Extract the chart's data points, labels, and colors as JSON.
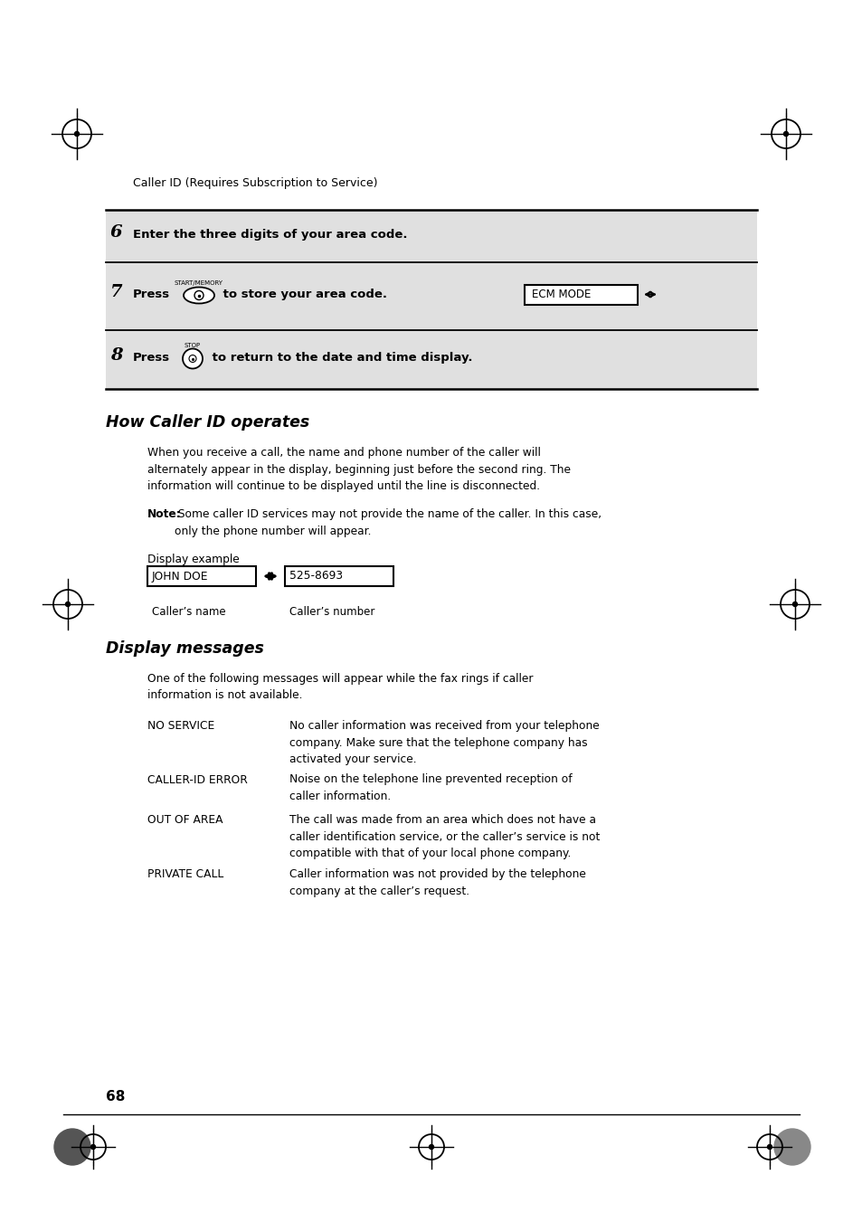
{
  "bg_color": "#ffffff",
  "page_header": "Caller ID (Requires Subscription to Service)",
  "step_bg_color": "#e0e0e0",
  "section1_title": "How Caller ID operates",
  "section1_para": "When you receive a call, the name and phone number of the caller will\nalternately appear in the display, beginning just before the second ring. The\ninformation will continue to be displayed until the line is disconnected.",
  "note_bold": "Note:",
  "note_text": " Some caller ID services may not provide the name of the caller. In this case,\nonly the phone number will appear.",
  "display_example_label": "Display example",
  "caller_name_box": "JOHN DOE",
  "caller_number_box": "525-8693",
  "callers_name_label": "Caller’s name",
  "callers_number_label": "Caller’s number",
  "section2_title": "Display messages",
  "section2_intro": "One of the following messages will appear while the fax rings if caller\ninformation is not available.",
  "messages": [
    {
      "term": "NO SERVICE",
      "definition": "No caller information was received from your telephone\ncompany. Make sure that the telephone company has\nactivated your service."
    },
    {
      "term": "CALLER-ID ERROR",
      "definition": "Noise on the telephone line prevented reception of\ncaller information."
    },
    {
      "term": "OUT OF AREA",
      "definition": "The call was made from an area which does not have a\ncaller identification service, or the caller’s service is not\ncompatible with that of your local phone company."
    },
    {
      "term": "PRIVATE CALL",
      "definition": "Caller information was not provided by the telephone\ncompany at the caller’s request."
    }
  ],
  "page_number": "68"
}
